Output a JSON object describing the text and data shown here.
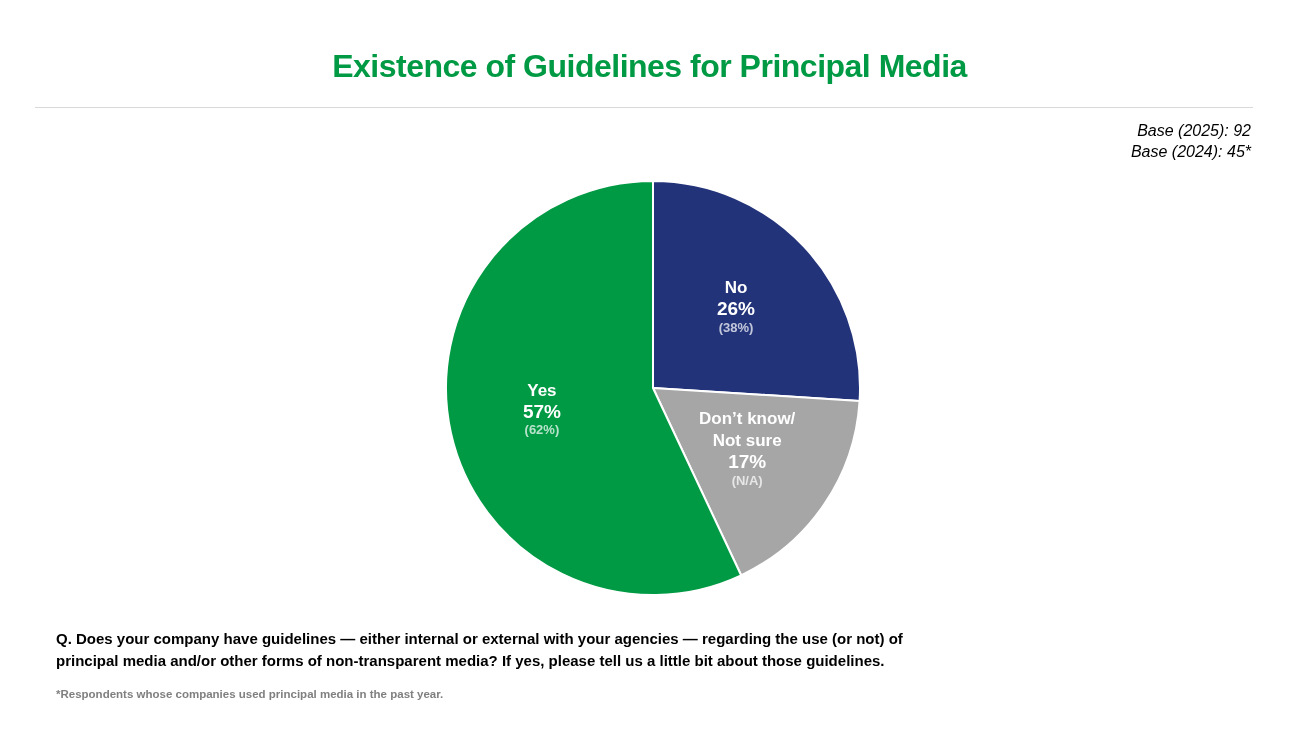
{
  "chart_data": {
    "type": "pie",
    "title": "Existence of Guidelines for Principal Media",
    "categories": [
      "No",
      "Don’t know/\nNot sure",
      "Yes"
    ],
    "values": [
      26,
      17,
      57
    ],
    "colors": [
      "#22337a",
      "#a6a6a6",
      "#009a44"
    ],
    "value_labels": [
      "26%",
      "17%",
      "57%"
    ],
    "legend": false,
    "annotations": [
      "Base (2025): 92",
      "Base (2024): 45*",
      "Q. Does your company have guidelines — either internal or external with your agencies — regarding the use (or not) of principal media and/or other forms of non-transparent media? If yes, please tell us a little bit about those guidelines.",
      "*Respondents whose companies used principal media in the past year.",
      {
        "text": "(38%)",
        "x": "No"
      },
      {
        "text": "(N/A)",
        "x": "Don’t know/\nNot sure"
      },
      {
        "text": "(62%)",
        "x": "Yes"
      }
    ]
  }
}
